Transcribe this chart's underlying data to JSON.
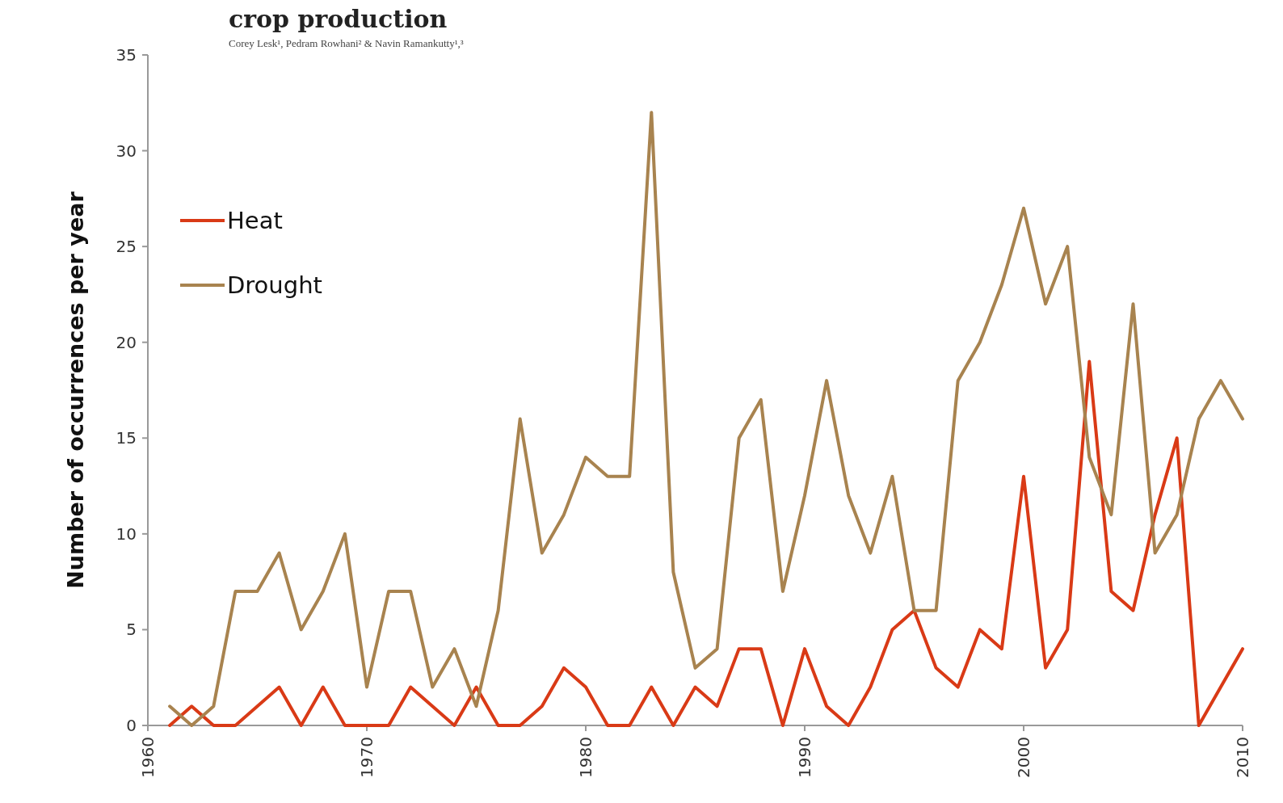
{
  "chart_data": {
    "type": "line",
    "title": "crop production",
    "subtitle": "Corey Lesk¹, Pedram Rowhani² & Navin Ramankutty¹,³",
    "ylabel": "Number of occurrences per year",
    "x": [
      1961,
      1962,
      1963,
      1964,
      1965,
      1966,
      1967,
      1968,
      1969,
      1970,
      1971,
      1972,
      1973,
      1974,
      1975,
      1976,
      1977,
      1978,
      1979,
      1980,
      1981,
      1982,
      1983,
      1984,
      1985,
      1986,
      1987,
      1988,
      1989,
      1990,
      1991,
      1992,
      1993,
      1994,
      1995,
      1996,
      1997,
      1998,
      1999,
      2000,
      2001,
      2002,
      2003,
      2004,
      2005,
      2006,
      2007,
      2008,
      2009,
      2010
    ],
    "series": [
      {
        "name": "Heat",
        "color": "#d93a16",
        "values": [
          0,
          1,
          0,
          0,
          1,
          2,
          0,
          2,
          0,
          0,
          0,
          2,
          1,
          0,
          2,
          0,
          0,
          1,
          3,
          2,
          0,
          0,
          2,
          0,
          2,
          1,
          4,
          4,
          0,
          4,
          1,
          0,
          2,
          5,
          6,
          3,
          2,
          5,
          4,
          13,
          3,
          5,
          19,
          7,
          6,
          11,
          15,
          0,
          2,
          4
        ]
      },
      {
        "name": "Drought",
        "color": "#a8834f",
        "values": [
          1,
          0,
          1,
          7,
          7,
          9,
          5,
          7,
          10,
          2,
          7,
          7,
          2,
          4,
          1,
          6,
          16,
          9,
          11,
          14,
          13,
          13,
          32,
          8,
          3,
          4,
          15,
          17,
          7,
          12,
          18,
          12,
          9,
          13,
          6,
          6,
          18,
          20,
          23,
          27,
          22,
          25,
          14,
          11,
          22,
          9,
          11,
          16,
          18,
          16
        ]
      }
    ],
    "xlim": [
      1960,
      2010
    ],
    "xticks": [
      1960,
      1970,
      1980,
      1990,
      2000,
      2010
    ],
    "ylim": [
      0,
      35
    ],
    "yticks": [
      0,
      5,
      10,
      15,
      20,
      25,
      30,
      35
    ],
    "grid": false,
    "legend": "top left",
    "marker": "none",
    "line_style": "solid"
  }
}
